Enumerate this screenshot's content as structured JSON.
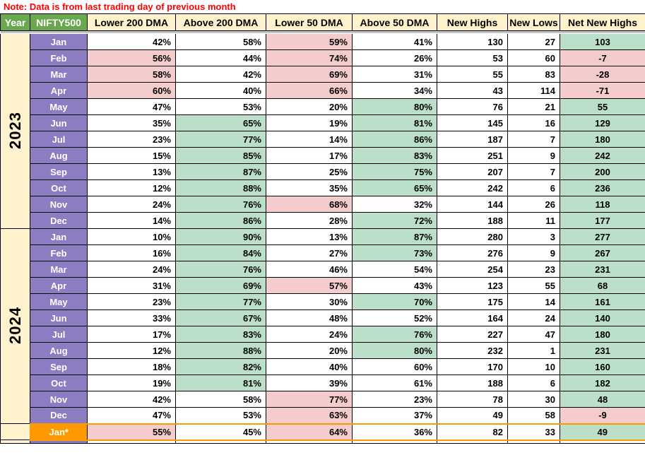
{
  "note": {
    "text": "Note: Data is from last trading day of previous month",
    "color": "#FF0000"
  },
  "colors": {
    "header_green": "#6AA84F",
    "header_cream": "#FFF2CC",
    "month_purple": "#8E7CC3",
    "negative_pink": "#F4CCCC",
    "positive_green": "#BCDFC9",
    "highlight_orange": "#FF9900",
    "note_red": "#FF0000"
  },
  "table": {
    "headers": [
      "Year",
      "NIFTY500",
      "Lower 200 DMA",
      "Above 200 DMA",
      "Lower 50 DMA",
      "Above 50 DMA",
      "New Highs",
      "New Lows",
      "Net New Highs"
    ],
    "cell_names": [
      "lower-200-dma",
      "above-200-dma",
      "lower-50-dma",
      "above-50-dma",
      "new-highs",
      "new-lows",
      "net-new-highs"
    ],
    "year_groups": [
      {
        "year": "2023",
        "rows": [
          {
            "month": "Jan",
            "cells": [
              [
                "42%",
                "w"
              ],
              [
                "58%",
                "w"
              ],
              [
                "59%",
                "p"
              ],
              [
                "41%",
                "w"
              ],
              [
                "130",
                "w"
              ],
              [
                "27",
                "w"
              ],
              [
                "103",
                "g"
              ]
            ]
          },
          {
            "month": "Feb",
            "cells": [
              [
                "56%",
                "p"
              ],
              [
                "44%",
                "w"
              ],
              [
                "74%",
                "p"
              ],
              [
                "26%",
                "w"
              ],
              [
                "53",
                "w"
              ],
              [
                "60",
                "w"
              ],
              [
                "-7",
                "p"
              ]
            ]
          },
          {
            "month": "Mar",
            "cells": [
              [
                "58%",
                "p"
              ],
              [
                "42%",
                "w"
              ],
              [
                "69%",
                "p"
              ],
              [
                "31%",
                "w"
              ],
              [
                "55",
                "w"
              ],
              [
                "83",
                "w"
              ],
              [
                "-28",
                "p"
              ]
            ]
          },
          {
            "month": "Apr",
            "cells": [
              [
                "60%",
                "p"
              ],
              [
                "40%",
                "w"
              ],
              [
                "66%",
                "p"
              ],
              [
                "34%",
                "w"
              ],
              [
                "43",
                "w"
              ],
              [
                "114",
                "w"
              ],
              [
                "-71",
                "p"
              ]
            ]
          },
          {
            "month": "May",
            "cells": [
              [
                "47%",
                "w"
              ],
              [
                "53%",
                "w"
              ],
              [
                "20%",
                "w"
              ],
              [
                "80%",
                "g"
              ],
              [
                "76",
                "w"
              ],
              [
                "21",
                "w"
              ],
              [
                "55",
                "g"
              ]
            ]
          },
          {
            "month": "Jun",
            "cells": [
              [
                "35%",
                "w"
              ],
              [
                "65%",
                "g"
              ],
              [
                "19%",
                "w"
              ],
              [
                "81%",
                "g"
              ],
              [
                "145",
                "w"
              ],
              [
                "16",
                "w"
              ],
              [
                "129",
                "g"
              ]
            ]
          },
          {
            "month": "Jul",
            "cells": [
              [
                "23%",
                "w"
              ],
              [
                "77%",
                "g"
              ],
              [
                "14%",
                "w"
              ],
              [
                "86%",
                "g"
              ],
              [
                "187",
                "w"
              ],
              [
                "7",
                "w"
              ],
              [
                "180",
                "g"
              ]
            ]
          },
          {
            "month": "Aug",
            "cells": [
              [
                "15%",
                "w"
              ],
              [
                "85%",
                "g"
              ],
              [
                "17%",
                "w"
              ],
              [
                "83%",
                "g"
              ],
              [
                "251",
                "w"
              ],
              [
                "9",
                "w"
              ],
              [
                "242",
                "g"
              ]
            ]
          },
          {
            "month": "Sep",
            "cells": [
              [
                "13%",
                "w"
              ],
              [
                "87%",
                "g"
              ],
              [
                "25%",
                "w"
              ],
              [
                "75%",
                "g"
              ],
              [
                "207",
                "w"
              ],
              [
                "7",
                "w"
              ],
              [
                "200",
                "g"
              ]
            ]
          },
          {
            "month": "Oct",
            "cells": [
              [
                "12%",
                "w"
              ],
              [
                "88%",
                "g"
              ],
              [
                "35%",
                "w"
              ],
              [
                "65%",
                "g"
              ],
              [
                "242",
                "w"
              ],
              [
                "6",
                "w"
              ],
              [
                "236",
                "g"
              ]
            ]
          },
          {
            "month": "Nov",
            "cells": [
              [
                "24%",
                "w"
              ],
              [
                "76%",
                "g"
              ],
              [
                "68%",
                "p"
              ],
              [
                "32%",
                "w"
              ],
              [
                "144",
                "w"
              ],
              [
                "26",
                "w"
              ],
              [
                "118",
                "g"
              ]
            ]
          },
          {
            "month": "Dec",
            "cells": [
              [
                "14%",
                "w"
              ],
              [
                "86%",
                "g"
              ],
              [
                "28%",
                "w"
              ],
              [
                "72%",
                "g"
              ],
              [
                "188",
                "w"
              ],
              [
                "11",
                "w"
              ],
              [
                "177",
                "g"
              ]
            ]
          }
        ]
      },
      {
        "year": "2024",
        "rows": [
          {
            "month": "Jan",
            "cells": [
              [
                "10%",
                "w"
              ],
              [
                "90%",
                "g"
              ],
              [
                "13%",
                "w"
              ],
              [
                "87%",
                "g"
              ],
              [
                "280",
                "w"
              ],
              [
                "3",
                "w"
              ],
              [
                "277",
                "g"
              ]
            ]
          },
          {
            "month": "Feb",
            "cells": [
              [
                "16%",
                "w"
              ],
              [
                "84%",
                "g"
              ],
              [
                "27%",
                "w"
              ],
              [
                "73%",
                "g"
              ],
              [
                "276",
                "w"
              ],
              [
                "9",
                "w"
              ],
              [
                "267",
                "g"
              ]
            ]
          },
          {
            "month": "Mar",
            "cells": [
              [
                "24%",
                "w"
              ],
              [
                "76%",
                "g"
              ],
              [
                "46%",
                "w"
              ],
              [
                "54%",
                "w"
              ],
              [
                "254",
                "w"
              ],
              [
                "23",
                "w"
              ],
              [
                "231",
                "g"
              ]
            ]
          },
          {
            "month": "Apr",
            "cells": [
              [
                "31%",
                "w"
              ],
              [
                "69%",
                "g"
              ],
              [
                "57%",
                "p"
              ],
              [
                "43%",
                "w"
              ],
              [
                "123",
                "w"
              ],
              [
                "55",
                "w"
              ],
              [
                "68",
                "g"
              ]
            ]
          },
          {
            "month": "May",
            "cells": [
              [
                "23%",
                "w"
              ],
              [
                "77%",
                "g"
              ],
              [
                "30%",
                "w"
              ],
              [
                "70%",
                "g"
              ],
              [
                "175",
                "w"
              ],
              [
                "14",
                "w"
              ],
              [
                "161",
                "g"
              ]
            ]
          },
          {
            "month": "Jun",
            "cells": [
              [
                "33%",
                "w"
              ],
              [
                "67%",
                "g"
              ],
              [
                "48%",
                "w"
              ],
              [
                "52%",
                "w"
              ],
              [
                "164",
                "w"
              ],
              [
                "24",
                "w"
              ],
              [
                "140",
                "g"
              ]
            ]
          },
          {
            "month": "Jul",
            "cells": [
              [
                "17%",
                "w"
              ],
              [
                "83%",
                "g"
              ],
              [
                "24%",
                "w"
              ],
              [
                "76%",
                "g"
              ],
              [
                "227",
                "w"
              ],
              [
                "47",
                "w"
              ],
              [
                "180",
                "g"
              ]
            ]
          },
          {
            "month": "Aug",
            "cells": [
              [
                "12%",
                "w"
              ],
              [
                "88%",
                "g"
              ],
              [
                "20%",
                "w"
              ],
              [
                "80%",
                "g"
              ],
              [
                "232",
                "w"
              ],
              [
                "1",
                "w"
              ],
              [
                "231",
                "g"
              ]
            ]
          },
          {
            "month": "Sep",
            "cells": [
              [
                "18%",
                "w"
              ],
              [
                "82%",
                "g"
              ],
              [
                "40%",
                "w"
              ],
              [
                "60%",
                "w"
              ],
              [
                "170",
                "w"
              ],
              [
                "10",
                "w"
              ],
              [
                "160",
                "g"
              ]
            ]
          },
          {
            "month": "Oct",
            "cells": [
              [
                "19%",
                "w"
              ],
              [
                "81%",
                "g"
              ],
              [
                "39%",
                "w"
              ],
              [
                "61%",
                "w"
              ],
              [
                "188",
                "w"
              ],
              [
                "6",
                "w"
              ],
              [
                "182",
                "g"
              ]
            ]
          },
          {
            "month": "Nov",
            "cells": [
              [
                "42%",
                "w"
              ],
              [
                "58%",
                "w"
              ],
              [
                "77%",
                "p"
              ],
              [
                "23%",
                "w"
              ],
              [
                "78",
                "w"
              ],
              [
                "30",
                "w"
              ],
              [
                "48",
                "g"
              ]
            ]
          },
          {
            "month": "Dec",
            "cells": [
              [
                "47%",
                "w"
              ],
              [
                "53%",
                "w"
              ],
              [
                "63%",
                "p"
              ],
              [
                "37%",
                "w"
              ],
              [
                "49",
                "w"
              ],
              [
                "58",
                "w"
              ],
              [
                "-9",
                "p"
              ]
            ]
          }
        ]
      },
      {
        "year": "",
        "rows": [
          {
            "month": "Jan*",
            "highlight": true,
            "cells": [
              [
                "55%",
                "p"
              ],
              [
                "45%",
                "w"
              ],
              [
                "64%",
                "p"
              ],
              [
                "36%",
                "w"
              ],
              [
                "82",
                "w"
              ],
              [
                "33",
                "w"
              ],
              [
                "49",
                "g"
              ]
            ]
          }
        ]
      }
    ],
    "partial_row": {
      "month": "",
      "cells": [
        "",
        "",
        "",
        "",
        "",
        "",
        ""
      ]
    }
  }
}
